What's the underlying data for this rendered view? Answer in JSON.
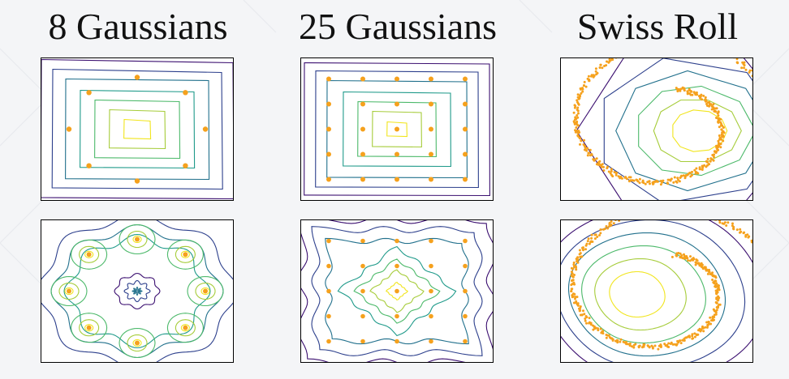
{
  "titles": [
    "8 Gaussians",
    "25 Gaussians",
    "Swiss Roll"
  ],
  "colors": {
    "background": "#f4f5f7",
    "plot_background": "#ffffff",
    "frame": "#000000",
    "points": "#f5a11d",
    "contour_levels": [
      "#3b0f70",
      "#2c3f8c",
      "#21708c",
      "#1f9a8a",
      "#4cb96a",
      "#a6cc3a",
      "#f1e51d"
    ]
  },
  "chart_data": [
    {
      "type": "scatter",
      "title": "8 Gaussians",
      "row": "top",
      "overlay": "contour",
      "x": [
        0,
        0.707,
        1,
        0.707,
        0,
        -0.707,
        -1,
        -0.707
      ],
      "y": [
        1,
        0.707,
        0,
        -0.707,
        -1,
        -0.707,
        0,
        0.707
      ],
      "contour": {
        "shape": "square",
        "levels": 7
      }
    },
    {
      "type": "scatter",
      "title": "25 Gaussians",
      "row": "top",
      "overlay": "contour",
      "grid_points": [
        -2,
        -1,
        0,
        1,
        2
      ],
      "contour": {
        "shape": "square",
        "levels": 7
      }
    },
    {
      "type": "scatter",
      "title": "Swiss Roll",
      "row": "top",
      "overlay": "contour",
      "pattern": "swiss-roll",
      "contour": {
        "shape": "skewed-rings",
        "levels": 6
      }
    },
    {
      "type": "scatter",
      "title": "8 Gaussians",
      "row": "bottom",
      "overlay": "contour",
      "x": [
        0,
        0.707,
        1,
        0.707,
        0,
        -0.707,
        -1,
        -0.707
      ],
      "y": [
        1,
        0.707,
        0,
        -0.707,
        -1,
        -0.707,
        0,
        0.707
      ],
      "contour": {
        "shape": "multimodal-rings",
        "levels": 7
      }
    },
    {
      "type": "scatter",
      "title": "25 Gaussians",
      "row": "bottom",
      "overlay": "contour",
      "grid_points": [
        -2,
        -1,
        0,
        1,
        2
      ],
      "contour": {
        "shape": "wavy-diamond",
        "levels": 7
      }
    },
    {
      "type": "scatter",
      "title": "Swiss Roll",
      "row": "bottom",
      "overlay": "contour",
      "pattern": "swiss-roll",
      "contour": {
        "shape": "elliptic-rings",
        "levels": 6
      }
    }
  ]
}
